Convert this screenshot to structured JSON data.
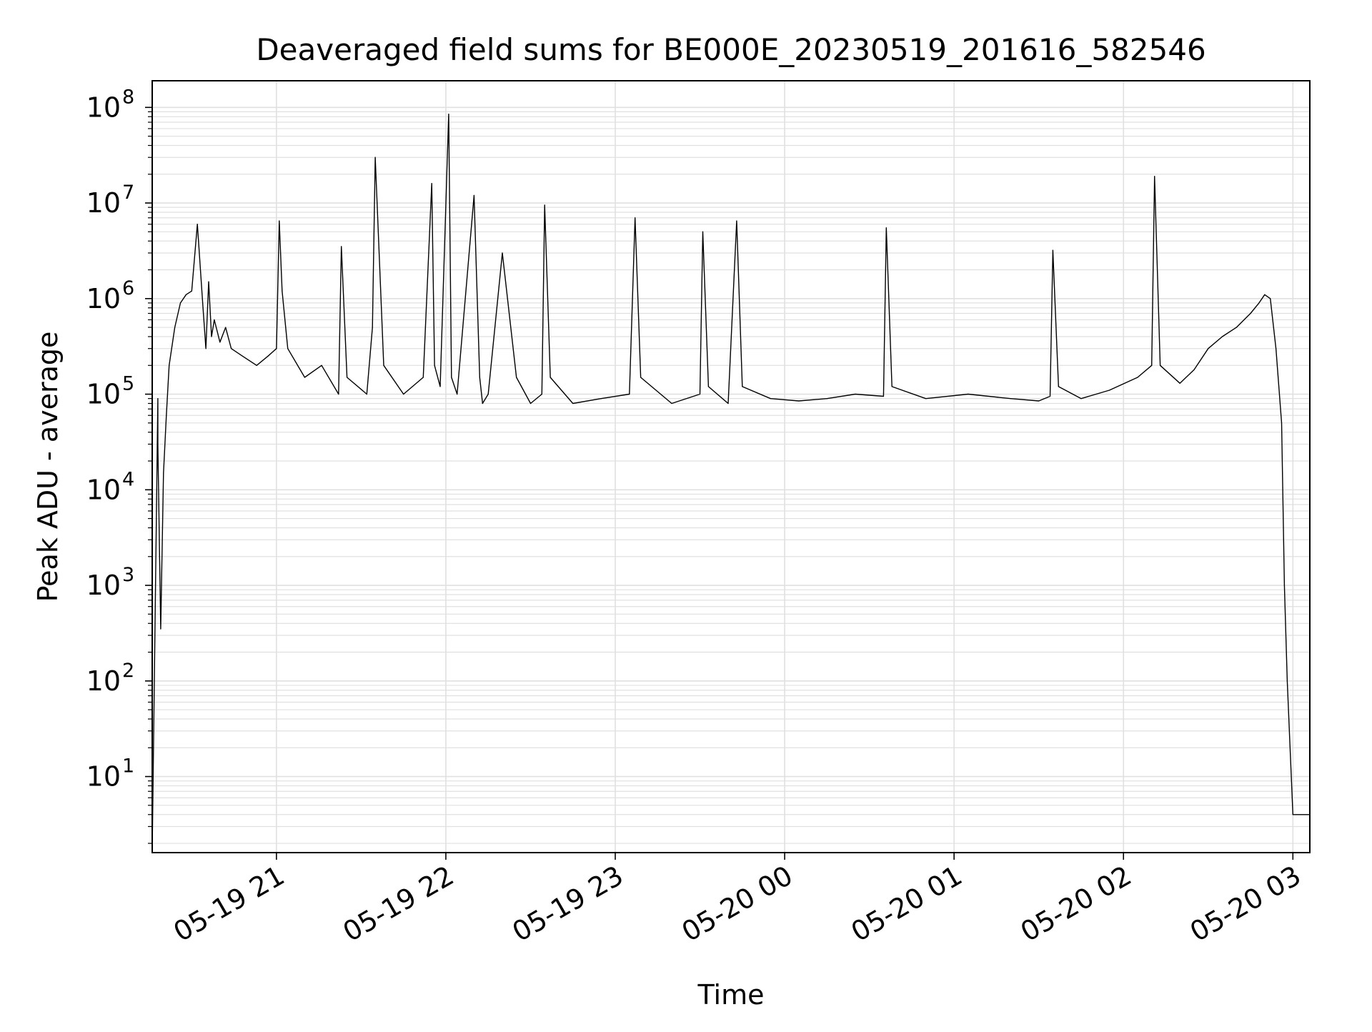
{
  "chart_data": {
    "type": "line",
    "title": "Deaveraged field sums for BE000E_20230519_201616_582546",
    "xlabel": "Time",
    "ylabel": "Peak ADU - average",
    "y_scale": "log",
    "ylim": [
      1.6,
      190000000.0
    ],
    "xlim": [
      "2023-05-19 20:16",
      "2023-05-20 03:06"
    ],
    "x_ticks": [
      {
        "t": "2023-05-19 21:00",
        "label": "05-19 21"
      },
      {
        "t": "2023-05-19 22:00",
        "label": "05-19 22"
      },
      {
        "t": "2023-05-19 23:00",
        "label": "05-19 23"
      },
      {
        "t": "2023-05-20 00:00",
        "label": "05-20 00"
      },
      {
        "t": "2023-05-20 01:00",
        "label": "05-20 01"
      },
      {
        "t": "2023-05-20 02:00",
        "label": "05-20 02"
      },
      {
        "t": "2023-05-20 03:00",
        "label": "05-20 03"
      }
    ],
    "y_ticks": [
      {
        "v": 10,
        "label": "10",
        "exp": "1"
      },
      {
        "v": 100,
        "label": "10",
        "exp": "2"
      },
      {
        "v": 1000,
        "label": "10",
        "exp": "3"
      },
      {
        "v": 10000,
        "label": "10",
        "exp": "4"
      },
      {
        "v": 100000,
        "label": "10",
        "exp": "5"
      },
      {
        "v": 1000000,
        "label": "10",
        "exp": "6"
      },
      {
        "v": 10000000,
        "label": "10",
        "exp": "7"
      },
      {
        "v": 100000000,
        "label": "10",
        "exp": "8"
      }
    ],
    "grid": true,
    "series_color": "#000000",
    "series": [
      {
        "x": [
          "2023-05-19 20:16",
          "2023-05-19 20:18",
          "2023-05-19 20:18",
          "2023-05-19 20:19",
          "2023-05-19 20:20",
          "2023-05-19 20:21",
          "2023-05-19 20:22",
          "2023-05-19 20:24",
          "2023-05-19 20:26",
          "2023-05-19 20:28",
          "2023-05-19 20:30",
          "2023-05-19 20:32",
          "2023-05-19 20:34",
          "2023-05-19 20:35",
          "2023-05-19 20:36",
          "2023-05-19 20:37",
          "2023-05-19 20:38",
          "2023-05-19 20:40",
          "2023-05-19 20:42",
          "2023-05-19 20:44",
          "2023-05-19 20:48",
          "2023-05-19 20:53",
          "2023-05-19 20:57",
          "2023-05-19 21:00",
          "2023-05-19 21:01",
          "2023-05-19 21:02",
          "2023-05-19 21:04",
          "2023-05-19 21:10",
          "2023-05-19 21:16",
          "2023-05-19 21:22",
          "2023-05-19 21:23",
          "2023-05-19 21:25",
          "2023-05-19 21:32",
          "2023-05-19 21:34",
          "2023-05-19 21:35",
          "2023-05-19 21:38",
          "2023-05-19 21:45",
          "2023-05-19 21:52",
          "2023-05-19 21:55",
          "2023-05-19 21:56",
          "2023-05-19 21:58",
          "2023-05-19 22:01",
          "2023-05-19 22:02",
          "2023-05-19 22:04",
          "2023-05-19 22:10",
          "2023-05-19 22:12",
          "2023-05-19 22:13",
          "2023-05-19 22:15",
          "2023-05-19 22:20",
          "2023-05-19 22:25",
          "2023-05-19 22:30",
          "2023-05-19 22:34",
          "2023-05-19 22:35",
          "2023-05-19 22:37",
          "2023-05-19 22:45",
          "2023-05-19 22:55",
          "2023-05-19 23:05",
          "2023-05-19 23:07",
          "2023-05-19 23:09",
          "2023-05-19 23:20",
          "2023-05-19 23:30",
          "2023-05-19 23:31",
          "2023-05-19 23:33",
          "2023-05-19 23:40",
          "2023-05-19 23:43",
          "2023-05-19 23:45",
          "2023-05-19 23:55",
          "2023-05-20 00:05",
          "2023-05-20 00:15",
          "2023-05-20 00:25",
          "2023-05-20 00:35",
          "2023-05-20 00:36",
          "2023-05-20 00:38",
          "2023-05-20 00:50",
          "2023-05-20 01:05",
          "2023-05-20 01:20",
          "2023-05-20 01:30",
          "2023-05-20 01:34",
          "2023-05-20 01:35",
          "2023-05-20 01:37",
          "2023-05-20 01:45",
          "2023-05-20 01:55",
          "2023-05-20 02:05",
          "2023-05-20 02:10",
          "2023-05-20 02:11",
          "2023-05-20 02:13",
          "2023-05-20 02:20",
          "2023-05-20 02:25",
          "2023-05-20 02:30",
          "2023-05-20 02:35",
          "2023-05-20 02:40",
          "2023-05-20 02:45",
          "2023-05-20 02:48",
          "2023-05-20 02:50",
          "2023-05-20 02:52",
          "2023-05-20 02:54",
          "2023-05-20 02:56",
          "2023-05-20 02:57",
          "2023-05-20 02:58",
          "2023-05-20 03:00",
          "2023-05-20 03:06"
        ],
        "y": [
          1.6,
          90000,
          30000,
          350,
          15000,
          60000,
          200000,
          500000,
          900000,
          1100000,
          1200000,
          6000000,
          800000,
          300000,
          1500000,
          400000,
          600000,
          350000,
          500000,
          300000,
          250000,
          200000,
          250000,
          300000,
          6500000,
          1200000,
          300000,
          150000,
          200000,
          100000,
          3500000,
          150000,
          100000,
          500000,
          30000000,
          200000,
          100000,
          150000,
          16000000,
          200000,
          120000,
          85000000,
          150000,
          100000,
          12000000,
          150000,
          80000,
          100000,
          3000000,
          150000,
          80000,
          100000,
          9500000,
          150000,
          80000,
          90000,
          100000,
          7000000,
          150000,
          80000,
          100000,
          5000000,
          120000,
          80000,
          6500000,
          120000,
          90000,
          85000,
          90000,
          100000,
          95000,
          5500000,
          120000,
          90000,
          100000,
          90000,
          85000,
          95000,
          3200000,
          120000,
          90000,
          110000,
          150000,
          200000,
          19000000,
          200000,
          130000,
          180000,
          300000,
          400000,
          500000,
          700000,
          900000,
          1100000,
          1000000,
          300000,
          50000,
          1000,
          100,
          4,
          4
        ]
      }
    ]
  }
}
